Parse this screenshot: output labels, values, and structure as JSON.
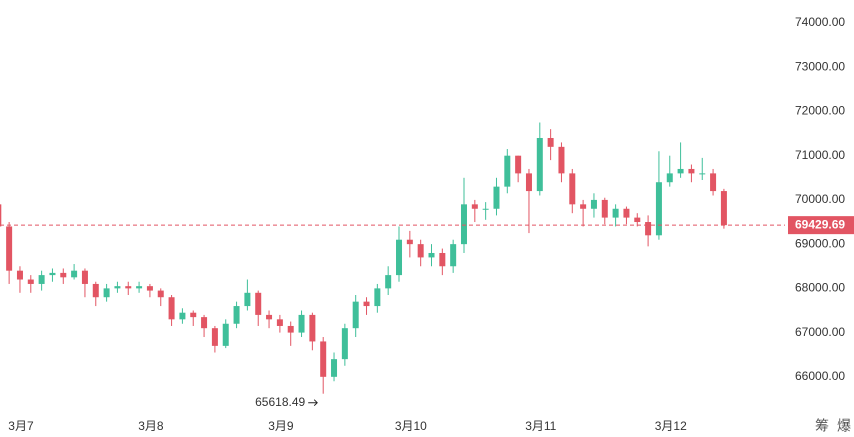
{
  "chart_data": {
    "type": "candlestick",
    "categories": [
      null,
      null,
      "3月7",
      null,
      null,
      null,
      null,
      null,
      null,
      null,
      null,
      null,
      null,
      null,
      "3月8",
      null,
      null,
      null,
      null,
      null,
      null,
      null,
      null,
      null,
      null,
      null,
      "3月9",
      null,
      null,
      null,
      null,
      null,
      null,
      null,
      null,
      null,
      null,
      null,
      "3月10",
      null,
      null,
      null,
      null,
      null,
      null,
      null,
      null,
      null,
      null,
      null,
      "3月11",
      null,
      null,
      null,
      null,
      null,
      null,
      null,
      null,
      null,
      null,
      null,
      "3月12",
      null,
      null,
      null,
      null,
      null
    ],
    "open": [
      69900,
      69400,
      68400,
      68200,
      68100,
      68300,
      68350,
      68250,
      68400,
      68100,
      67800,
      68000,
      68050,
      68000,
      68050,
      67950,
      67800,
      67300,
      67450,
      67350,
      67100,
      66700,
      67200,
      67600,
      67900,
      67400,
      67300,
      67150,
      67000,
      67400,
      66800,
      66000,
      66400,
      67100,
      67700,
      67600,
      68000,
      68300,
      69100,
      69000,
      68700,
      68800,
      68500,
      69000,
      69900,
      69800,
      69800,
      70300,
      71000,
      70600,
      70200,
      71400,
      71200,
      70600,
      69900,
      69800,
      70000,
      69600,
      69800,
      69600,
      69500,
      69200,
      70400,
      70600,
      70700,
      70600,
      70600,
      70200
    ],
    "high": [
      70350,
      69500,
      68500,
      68300,
      68400,
      68450,
      68450,
      68550,
      68450,
      68150,
      68100,
      68150,
      68150,
      68150,
      68100,
      68000,
      67850,
      67550,
      67500,
      67400,
      67150,
      67300,
      67700,
      68200,
      67950,
      67500,
      67400,
      67250,
      67500,
      67450,
      66900,
      66550,
      67200,
      67850,
      67800,
      68100,
      68500,
      69400,
      69300,
      69100,
      69000,
      68900,
      69100,
      70500,
      70000,
      69950,
      70500,
      71150,
      71000,
      70700,
      71750,
      71600,
      71300,
      70700,
      70000,
      70150,
      70050,
      69900,
      69850,
      69700,
      69650,
      71100,
      71000,
      71300,
      70800,
      70950,
      70700,
      70250
    ],
    "low": [
      68900,
      68100,
      67900,
      67900,
      67950,
      68150,
      68100,
      68200,
      67800,
      67600,
      67700,
      67900,
      67850,
      67900,
      67800,
      67600,
      67150,
      67200,
      67150,
      66900,
      66550,
      66650,
      67100,
      67500,
      67150,
      67100,
      67000,
      66700,
      66900,
      66600,
      65618.49,
      65900,
      66250,
      66900,
      67400,
      67450,
      67850,
      68150,
      68700,
      68500,
      68500,
      68300,
      68350,
      68800,
      69500,
      69550,
      69650,
      70150,
      70400,
      69250,
      70100,
      70900,
      70400,
      69700,
      69400,
      69600,
      69450,
      69400,
      69450,
      69400,
      68950,
      69100,
      70300,
      70500,
      70400,
      70450,
      70100,
      69350
    ],
    "close": [
      69400,
      68400,
      68200,
      68100,
      68300,
      68350,
      68250,
      68400,
      68100,
      67800,
      68000,
      68050,
      68000,
      68050,
      67950,
      67800,
      67300,
      67450,
      67350,
      67100,
      66700,
      67200,
      67600,
      67900,
      67400,
      67300,
      67150,
      67000,
      67400,
      66800,
      66000,
      66400,
      67100,
      67700,
      67600,
      68000,
      68300,
      69100,
      69000,
      68700,
      68800,
      68500,
      69000,
      69900,
      69800,
      69800,
      70300,
      71000,
      70600,
      70200,
      71400,
      71200,
      70600,
      69900,
      69800,
      70000,
      69600,
      69800,
      69600,
      69500,
      69200,
      70400,
      70600,
      70700,
      70600,
      70600,
      70200,
      69429.69
    ],
    "up_color": "#3fbf9a",
    "down_color": "#e25563",
    "ylim": [
      65250,
      74520
    ],
    "yticks": [
      {
        "value": 66000,
        "label": "66000.00"
      },
      {
        "value": 67000,
        "label": "67000.00"
      },
      {
        "value": 68000,
        "label": "68000.00"
      },
      {
        "value": 69000,
        "label": "69000.00"
      },
      {
        "value": 70000,
        "label": "70000.00"
      },
      {
        "value": 71000,
        "label": "71000.00"
      },
      {
        "value": 72000,
        "label": "72000.00"
      },
      {
        "value": 73000,
        "label": "73000.00"
      },
      {
        "value": 74000,
        "label": "74000.00"
      }
    ],
    "corner_labels": [
      "筹",
      "爆"
    ]
  }
}
